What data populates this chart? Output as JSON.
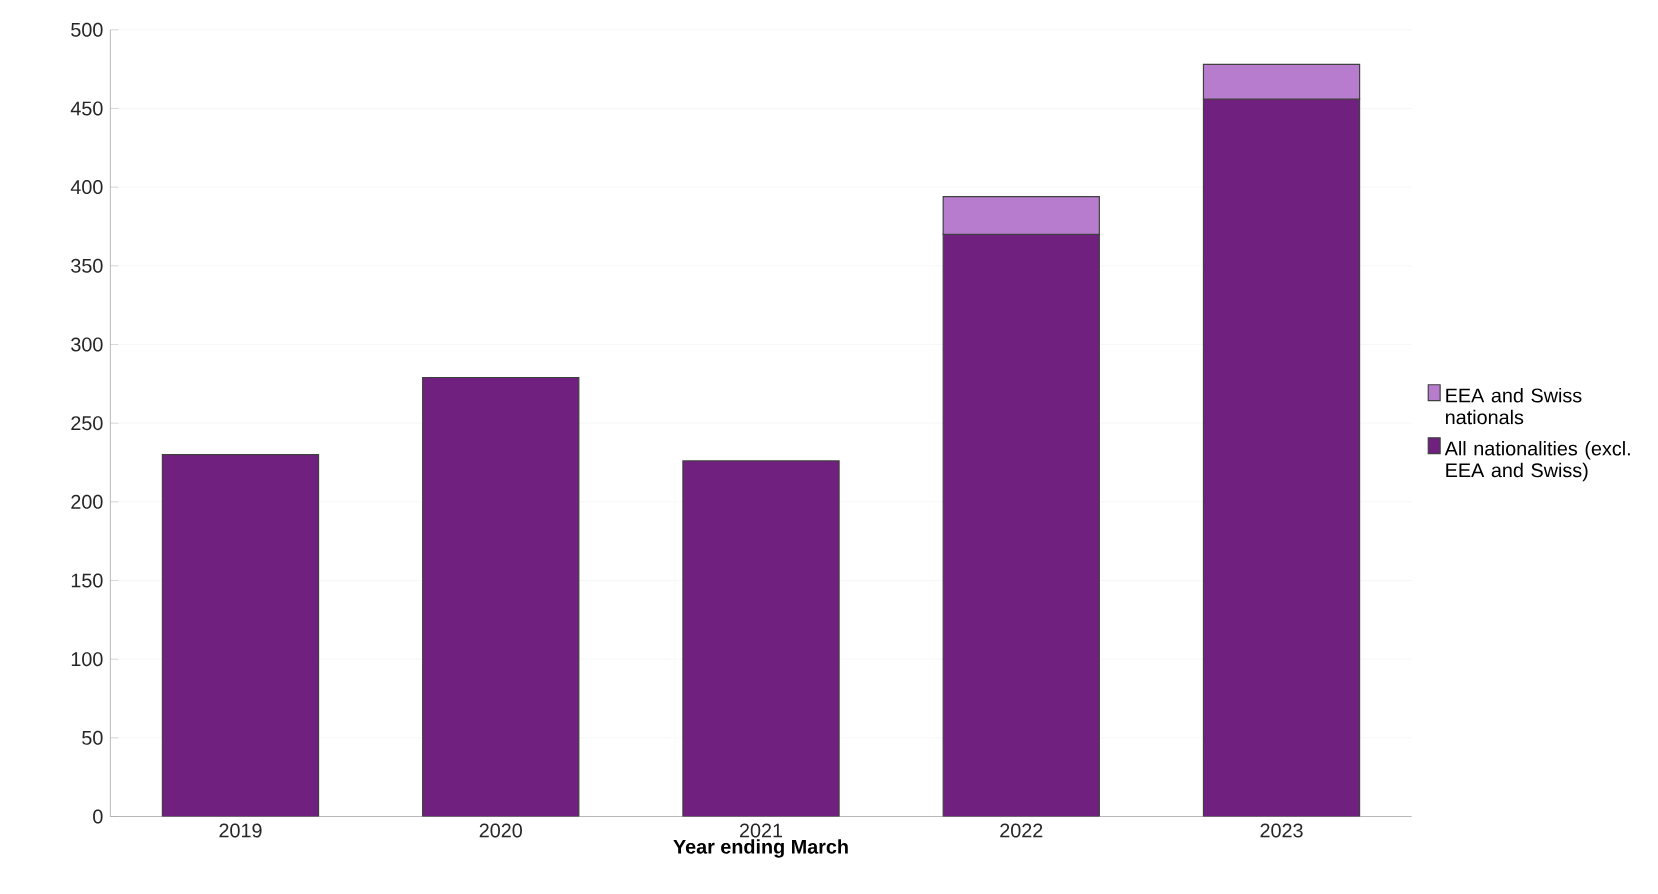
{
  "chart_data": {
    "type": "bar",
    "stacked": true,
    "xlabel": "Year ending March",
    "categories": [
      "2019",
      "2020",
      "2021",
      "2022",
      "2023"
    ],
    "series": [
      {
        "name": "All nationalities (excl. EEA and Swiss)",
        "color": "#70207e",
        "values": [
          230,
          279,
          226,
          370,
          456
        ]
      },
      {
        "name": "EEA and Swiss nationals",
        "color": "#b87ccf",
        "values": [
          0,
          0,
          0,
          24,
          22
        ]
      }
    ],
    "ylim": [
      0,
      500
    ],
    "yticks": [
      0,
      50,
      100,
      150,
      200,
      250,
      300,
      350,
      400,
      450,
      500
    ],
    "grid": "y",
    "legend": "right"
  }
}
